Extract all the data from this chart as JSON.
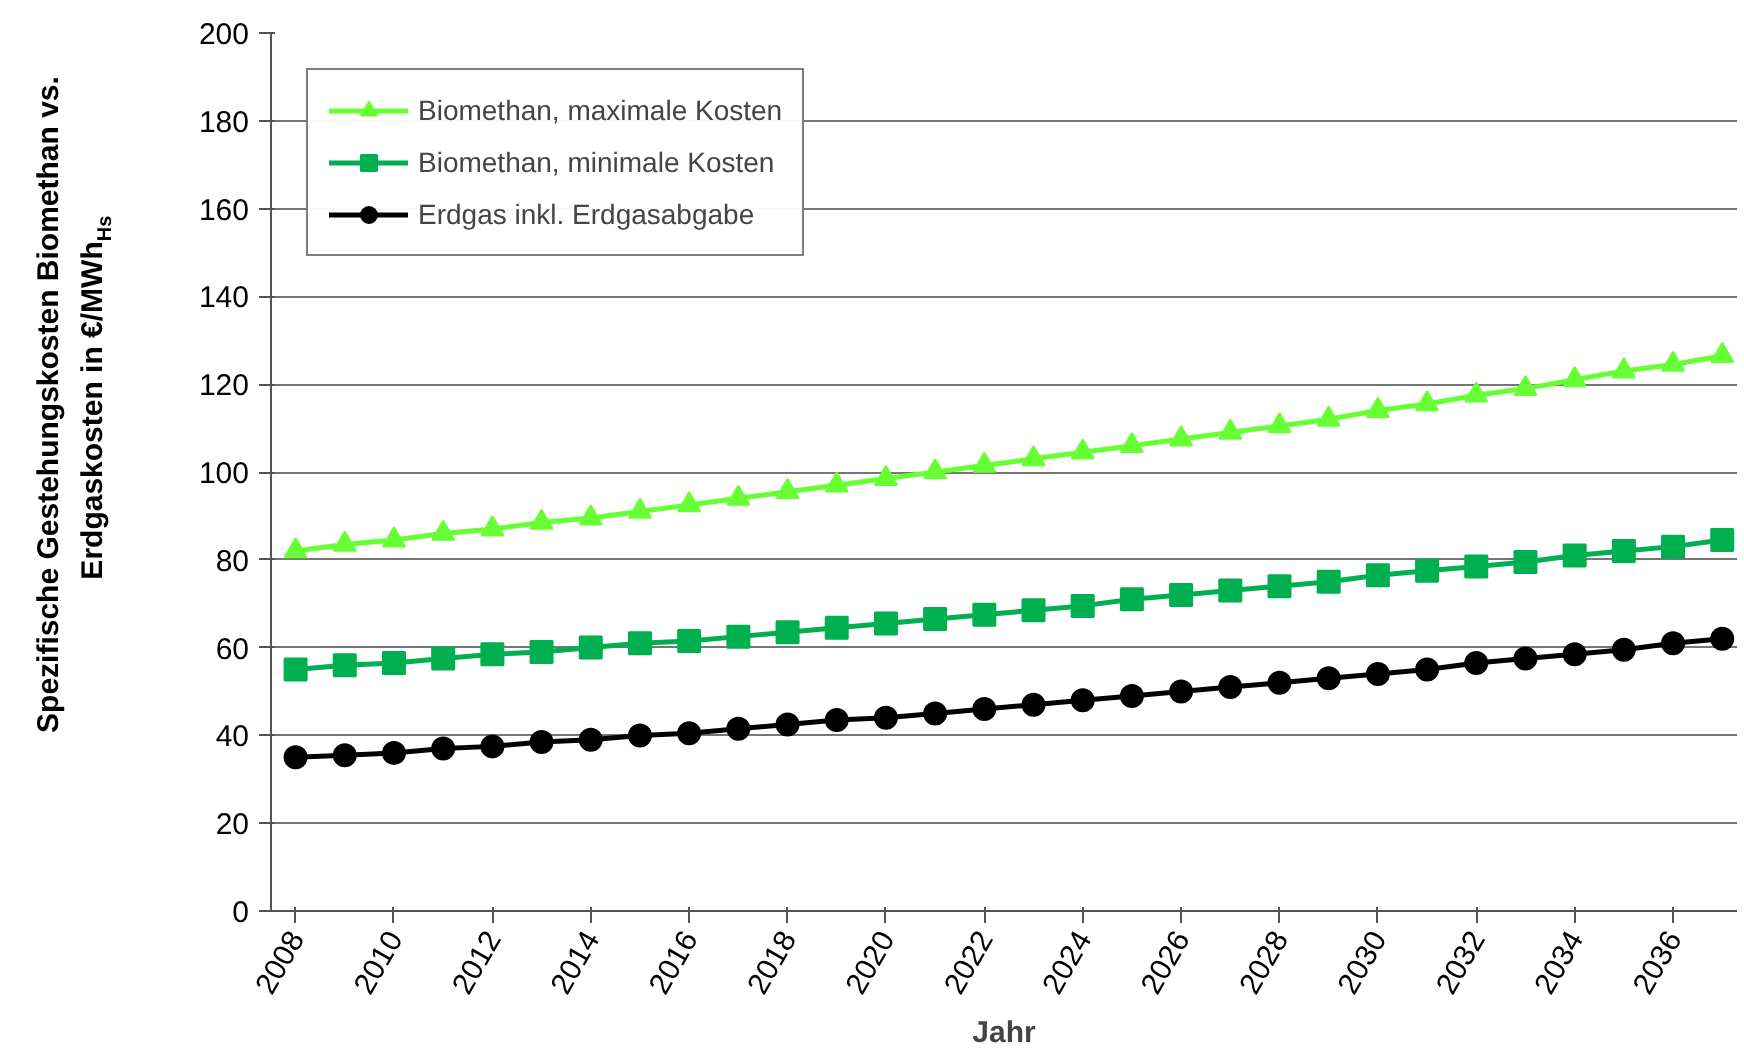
{
  "chart_data": {
    "type": "line",
    "xlabel": "Jahr",
    "ylabel": "Spezifische Gestehungskosten Biomethan vs.\nErdgaskosten in €/MWh$_{Hs}$",
    "x": [
      2008,
      2009,
      2010,
      2011,
      2012,
      2013,
      2014,
      2015,
      2016,
      2017,
      2018,
      2019,
      2020,
      2021,
      2022,
      2023,
      2024,
      2025,
      2026,
      2027,
      2028,
      2029,
      2030,
      2031,
      2032,
      2033,
      2034,
      2035,
      2036,
      2037
    ],
    "series": [
      {
        "name": "Biomethan, maximale Kosten",
        "color": "#66ff33",
        "marker": "triangle",
        "values": [
          82,
          83.5,
          84.5,
          86,
          87,
          88.5,
          89.5,
          91,
          92.5,
          94,
          95.5,
          97,
          98.5,
          100,
          101.5,
          103,
          104.5,
          106,
          107.5,
          109,
          110.5,
          112,
          114,
          115.5,
          117.5,
          119,
          121,
          123,
          124.5,
          126.5
        ]
      },
      {
        "name": "Biomethan, minimale Kosten",
        "color": "#00b050",
        "marker": "square",
        "values": [
          55,
          56,
          56.5,
          57.5,
          58.5,
          59,
          60,
          61,
          61.5,
          62.5,
          63.5,
          64.5,
          65.5,
          66.5,
          67.5,
          68.5,
          69.5,
          71,
          72,
          73,
          74,
          75,
          76.5,
          77.5,
          78.5,
          79.5,
          81,
          82,
          83,
          84.5
        ]
      },
      {
        "name": "Erdgas inkl. Erdgasabgabe",
        "color": "#000000",
        "marker": "circle",
        "values": [
          35,
          35.5,
          36,
          37,
          37.5,
          38.5,
          39,
          40,
          40.5,
          41.5,
          42.5,
          43.5,
          44,
          45,
          46,
          47,
          48,
          49,
          50,
          51,
          52,
          53,
          54,
          55,
          56.5,
          57.5,
          58.5,
          59.5,
          61,
          62
        ]
      }
    ],
    "xlim": [
      2007.5,
      2037.3
    ],
    "xticks": [
      2008,
      2010,
      2012,
      2014,
      2016,
      2018,
      2020,
      2022,
      2024,
      2026,
      2028,
      2030,
      2032,
      2034,
      2036
    ],
    "ylim": [
      0,
      200
    ],
    "yticks": [
      0,
      20,
      40,
      60,
      80,
      100,
      120,
      140,
      160,
      180,
      200
    ],
    "grid": "y",
    "legend": "top left",
    "line_style": "solid"
  }
}
